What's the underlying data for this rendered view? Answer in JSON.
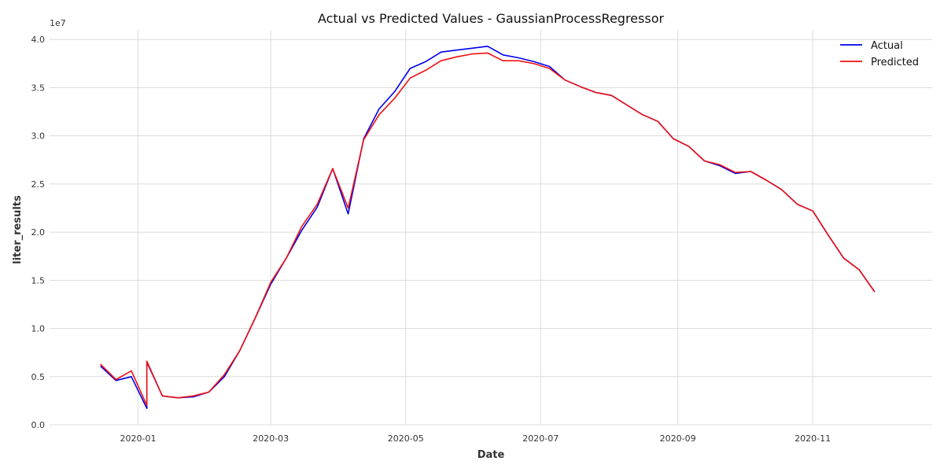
{
  "chart_data": {
    "type": "line",
    "title": "Actual vs Predicted Values - GaussianProcessRegressor",
    "xlabel": "Date",
    "ylabel": "liter_results",
    "y_offset_label": "1e7",
    "xlim": [
      "2019-11-22",
      "2020-12-25"
    ],
    "ylim": [
      0,
      4.1
    ],
    "x_ticks": [
      "2020-01-01",
      "2020-03-01",
      "2020-05-01",
      "2020-07-01",
      "2020-09-01",
      "2020-11-01"
    ],
    "x_tick_labels": [
      "2020-01",
      "2020-03",
      "2020-05",
      "2020-07",
      "2020-09",
      "2020-11"
    ],
    "y_ticks": [
      0.0,
      0.5,
      1.0,
      1.5,
      2.0,
      2.5,
      3.0,
      3.5,
      4.0
    ],
    "y_tick_labels": [
      "0.0",
      "0.5",
      "1.0",
      "1.5",
      "2.0",
      "2.5",
      "3.0",
      "3.5",
      "4.0"
    ],
    "grid": true,
    "legend_position": "top-right",
    "x": [
      "2019-12-15",
      "2019-12-22",
      "2019-12-29",
      "2020-01-05",
      "2020-01-05",
      "2020-01-12",
      "2020-01-19",
      "2020-01-26",
      "2020-02-02",
      "2020-02-09",
      "2020-02-16",
      "2020-02-23",
      "2020-03-01",
      "2020-03-08",
      "2020-03-15",
      "2020-03-22",
      "2020-03-29",
      "2020-04-05",
      "2020-04-12",
      "2020-04-19",
      "2020-04-26",
      "2020-05-03",
      "2020-05-10",
      "2020-05-17",
      "2020-05-24",
      "2020-05-31",
      "2020-06-07",
      "2020-06-14",
      "2020-06-21",
      "2020-06-28",
      "2020-07-05",
      "2020-07-12",
      "2020-07-19",
      "2020-07-26",
      "2020-08-02",
      "2020-08-09",
      "2020-08-16",
      "2020-08-23",
      "2020-08-30",
      "2020-09-06",
      "2020-09-13",
      "2020-09-20",
      "2020-09-27",
      "2020-10-04",
      "2020-10-11",
      "2020-10-18",
      "2020-10-25",
      "2020-11-01",
      "2020-11-08",
      "2020-11-15",
      "2020-11-22",
      "2020-11-29"
    ],
    "series": [
      {
        "name": "Actual",
        "color": "#0000ee",
        "values": [
          0.61,
          0.46,
          0.5,
          0.17,
          0.65,
          0.3,
          0.28,
          0.29,
          0.34,
          0.5,
          0.77,
          1.11,
          1.46,
          1.73,
          2.02,
          2.26,
          2.66,
          2.19,
          2.97,
          3.28,
          3.46,
          3.7,
          3.77,
          3.87,
          3.89,
          3.91,
          3.93,
          3.84,
          3.81,
          3.77,
          3.72,
          3.58,
          3.51,
          3.45,
          3.42,
          3.32,
          3.22,
          3.15,
          2.97,
          2.89,
          2.74,
          2.69,
          2.61,
          2.63,
          2.54,
          2.44,
          2.29,
          2.22,
          1.97,
          1.73,
          1.61,
          1.38
        ]
      },
      {
        "name": "Predicted",
        "color": "#ee1111",
        "values": [
          0.63,
          0.47,
          0.56,
          0.2,
          0.66,
          0.3,
          0.28,
          0.3,
          0.34,
          0.52,
          0.77,
          1.11,
          1.48,
          1.73,
          2.06,
          2.29,
          2.66,
          2.25,
          2.96,
          3.22,
          3.39,
          3.6,
          3.68,
          3.78,
          3.82,
          3.85,
          3.86,
          3.78,
          3.78,
          3.75,
          3.7,
          3.58,
          3.51,
          3.45,
          3.42,
          3.32,
          3.22,
          3.15,
          2.97,
          2.89,
          2.74,
          2.7,
          2.62,
          2.63,
          2.54,
          2.44,
          2.29,
          2.22,
          1.97,
          1.73,
          1.61,
          1.38
        ]
      }
    ]
  }
}
